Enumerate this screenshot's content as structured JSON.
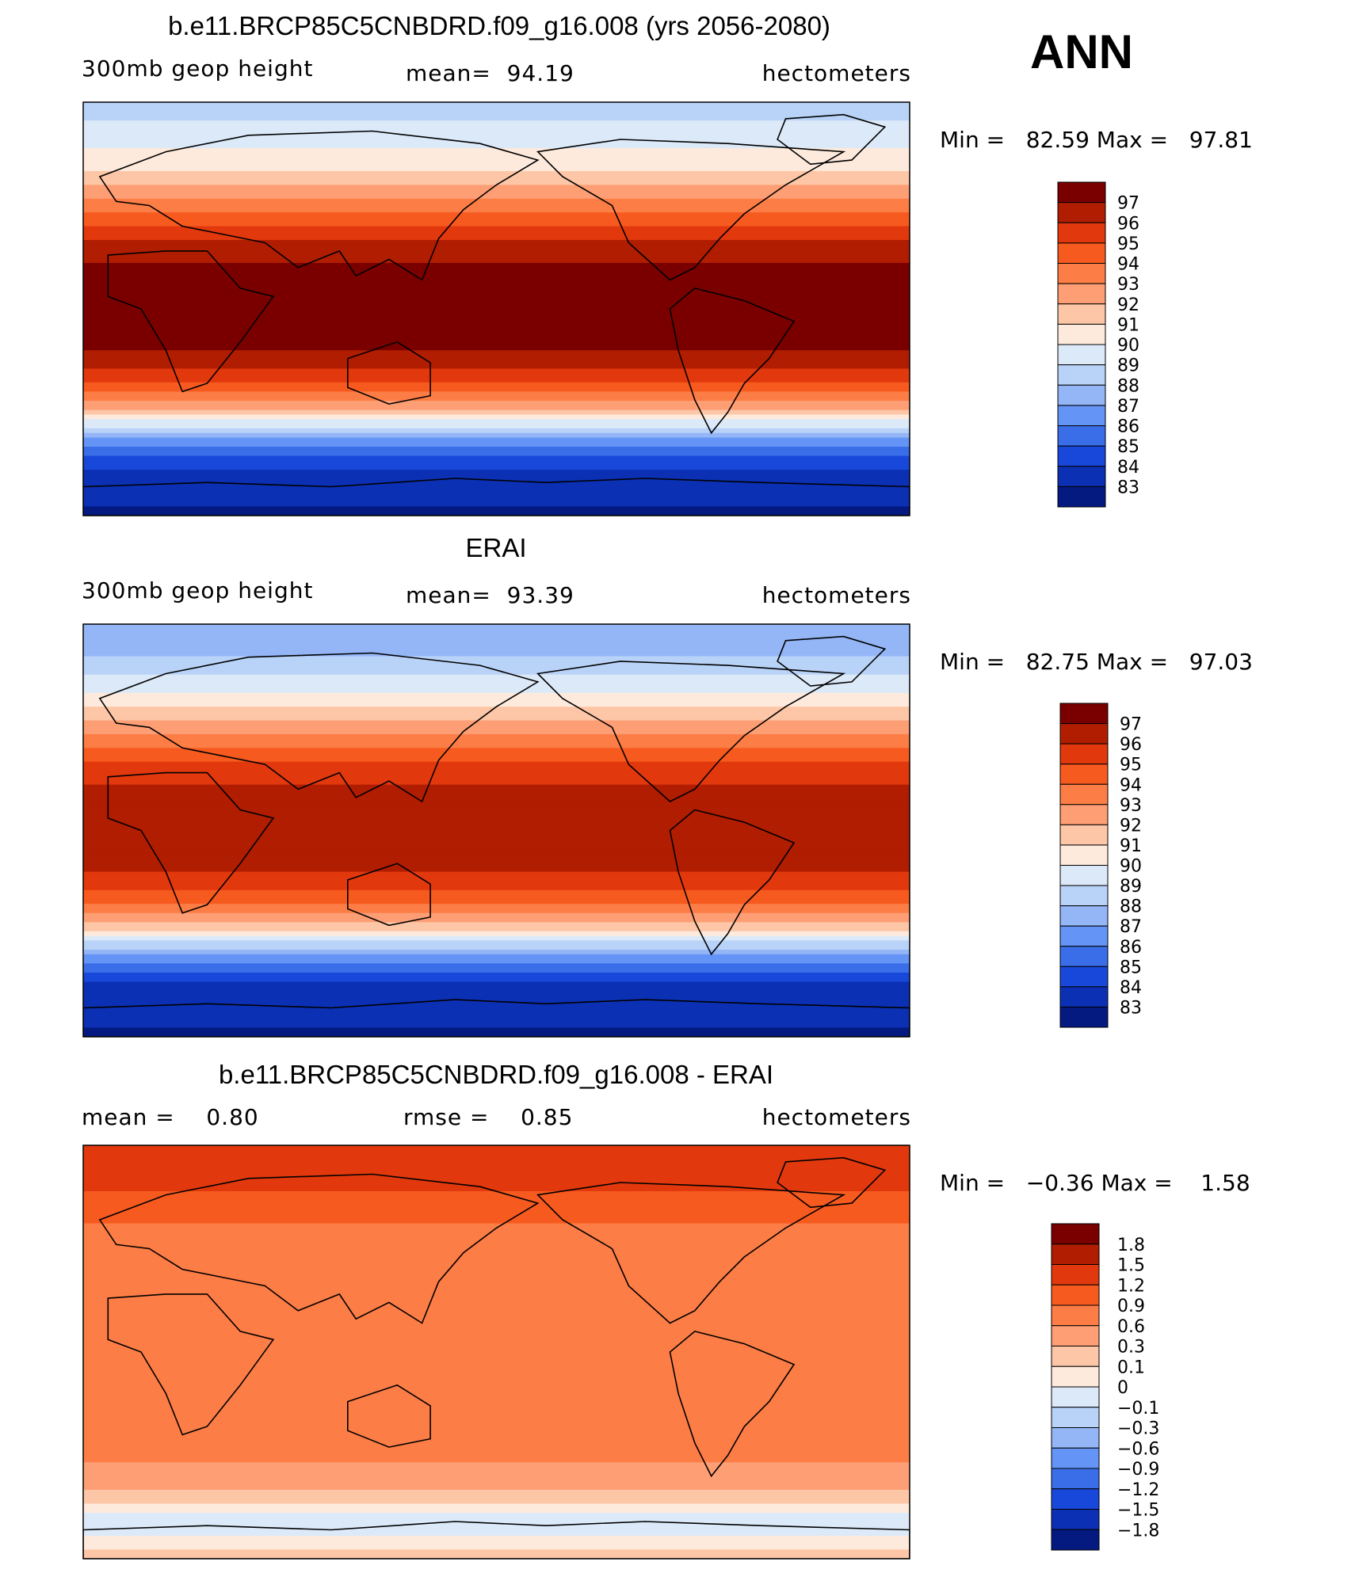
{
  "season": "ANN",
  "chart_data": [
    {
      "type": "heatmap",
      "title": "b.e11.BRCP85C5CNBDRD.f09_g16.008 (yrs 2056-2080)",
      "variable": "300mb geop height",
      "stat_text": "mean=  94.19",
      "units": "hectometers",
      "minmax_text": "Min =   82.59 Max =   97.81",
      "min": 82.59,
      "max": 97.81,
      "colorbar": {
        "levels": [
          "97",
          "96",
          "95",
          "94",
          "93",
          "92",
          "91",
          "90",
          "89",
          "88",
          "87",
          "86",
          "85",
          "84",
          "83"
        ],
        "colors": [
          "#7a0000",
          "#b01d00",
          "#e2380d",
          "#f75a1f",
          "#fc7d46",
          "#fd9e75",
          "#fdc6a6",
          "#feeadc",
          "#dce9f8",
          "#b9d3f8",
          "#94b6f7",
          "#6494f5",
          "#3a6ee9",
          "#1848d9",
          "#0b30b4",
          "#041a80"
        ]
      },
      "latitude_profile": [
        [
          90,
          88.5
        ],
        [
          75,
          89.5
        ],
        [
          60,
          91.0
        ],
        [
          45,
          93.5
        ],
        [
          30,
          96.0
        ],
        [
          15,
          97.4
        ],
        [
          0,
          97.7
        ],
        [
          -15,
          97.4
        ],
        [
          -30,
          95.5
        ],
        [
          -45,
          91.5
        ],
        [
          -55,
          87.5
        ],
        [
          -65,
          84.5
        ],
        [
          -75,
          83.4
        ],
        [
          -90,
          82.8
        ]
      ]
    },
    {
      "type": "heatmap",
      "title": "ERAI",
      "variable": "300mb geop height",
      "stat_text": "mean=  93.39",
      "units": "hectometers",
      "minmax_text": "Min =   82.75 Max =   97.03",
      "min": 82.75,
      "max": 97.03,
      "colorbar": {
        "levels": [
          "97",
          "96",
          "95",
          "94",
          "93",
          "92",
          "91",
          "90",
          "89",
          "88",
          "87",
          "86",
          "85",
          "84",
          "83"
        ],
        "colors": [
          "#7a0000",
          "#b01d00",
          "#e2380d",
          "#f75a1f",
          "#fc7d46",
          "#fd9e75",
          "#fdc6a6",
          "#feeadc",
          "#dce9f8",
          "#b9d3f8",
          "#94b6f7",
          "#6494f5",
          "#3a6ee9",
          "#1848d9",
          "#0b30b4",
          "#041a80"
        ]
      },
      "latitude_profile": [
        [
          90,
          87.0
        ],
        [
          75,
          88.0
        ],
        [
          60,
          90.0
        ],
        [
          45,
          92.5
        ],
        [
          30,
          95.0
        ],
        [
          15,
          96.5
        ],
        [
          0,
          96.8
        ],
        [
          -15,
          96.5
        ],
        [
          -30,
          94.5
        ],
        [
          -45,
          90.5
        ],
        [
          -55,
          86.5
        ],
        [
          -65,
          84.0
        ],
        [
          -75,
          83.2
        ],
        [
          -90,
          82.9
        ]
      ]
    },
    {
      "type": "heatmap",
      "title": "b.e11.BRCP85C5CNBDRD.f09_g16.008 - ERAI",
      "variable": "",
      "stat_text": "mean =    0.80",
      "stat2_text": "rmse =    0.85",
      "units": "hectometers",
      "minmax_text": "Min =   −0.36 Max =    1.58",
      "min": -0.36,
      "max": 1.58,
      "colorbar": {
        "levels": [
          "1.8",
          "1.5",
          "1.2",
          "0.9",
          "0.6",
          "0.3",
          "0.1",
          "0",
          "−0.1",
          "−0.3",
          "−0.6",
          "−0.9",
          "−1.2",
          "−1.5",
          "−1.8"
        ],
        "colors": [
          "#7a0000",
          "#b01d00",
          "#e2380d",
          "#f75a1f",
          "#fc7d46",
          "#fd9e75",
          "#fdc6a6",
          "#feeadc",
          "#dce9f8",
          "#b9d3f8",
          "#94b6f7",
          "#6494f5",
          "#3a6ee9",
          "#1848d9",
          "#0b30b4",
          "#041a80"
        ]
      },
      "latitude_profile": [
        [
          90,
          1.2
        ],
        [
          75,
          1.3
        ],
        [
          60,
          0.95
        ],
        [
          45,
          0.75
        ],
        [
          30,
          0.7
        ],
        [
          15,
          0.7
        ],
        [
          0,
          0.75
        ],
        [
          -15,
          0.7
        ],
        [
          -30,
          0.75
        ],
        [
          -45,
          0.65
        ],
        [
          -55,
          0.45
        ],
        [
          -65,
          0.1
        ],
        [
          -75,
          -0.1
        ],
        [
          -90,
          0.15
        ]
      ]
    }
  ]
}
